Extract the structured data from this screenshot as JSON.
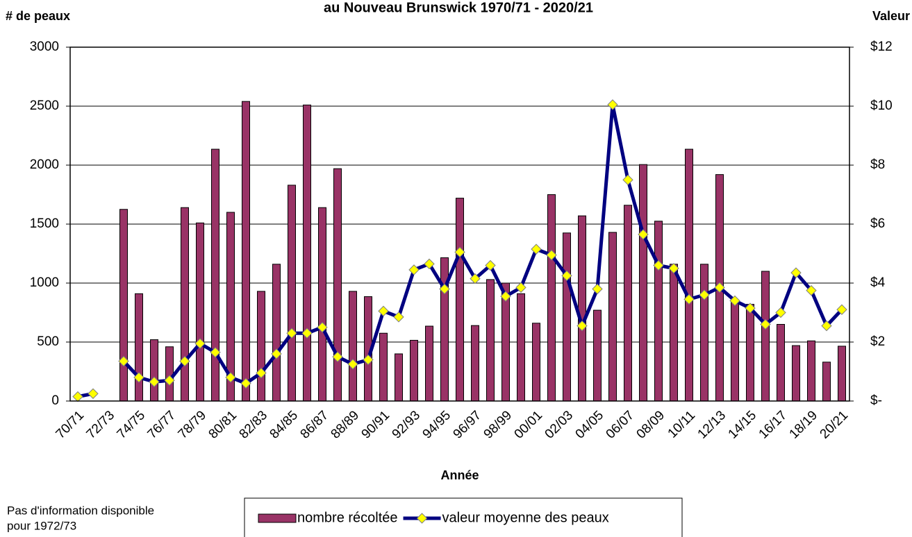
{
  "chart_data": {
    "type": "bar",
    "title": "au Nouveau Brunswick 1970/71 - 2020/21",
    "y_label": "# de peaux",
    "y2_label": "Valeur",
    "x_label": "Année",
    "annotation": [
      "Pas d'information disponible",
      "pour 1972/73"
    ],
    "categories": [
      "70/71",
      null,
      "72/73",
      null,
      "74/75",
      null,
      "76/77",
      null,
      "78/79",
      null,
      "80/81",
      null,
      "82/83",
      null,
      "84/85",
      null,
      "86/87",
      null,
      "88/89",
      null,
      "90/91",
      null,
      "92/93",
      null,
      "94/95",
      null,
      "96/97",
      null,
      "98/99",
      null,
      "00/01",
      null,
      "02/03",
      null,
      "04/05",
      null,
      "06/07",
      null,
      "08/09",
      null,
      "10/11",
      null,
      "12/13",
      null,
      "14/15",
      null,
      "16/17",
      null,
      "18/19",
      null,
      "20/21"
    ],
    "series": [
      {
        "name": "nombre récoltée",
        "type": "bar",
        "color": "#993366",
        "values": [
          null,
          null,
          null,
          1625,
          910,
          520,
          460,
          1640,
          1510,
          2135,
          1600,
          2540,
          930,
          1160,
          1830,
          2510,
          1640,
          1970,
          930,
          885,
          575,
          400,
          515,
          635,
          1215,
          1720,
          640,
          1030,
          1000,
          910,
          660,
          1750,
          1425,
          1570,
          770,
          1430,
          1660,
          2005,
          1525,
          1160,
          2135,
          1160,
          1920,
          850,
          820,
          1100,
          650,
          470,
          510,
          330,
          465
        ]
      },
      {
        "name": "valeur moyenne des peaux",
        "type": "line",
        "axis": "y2",
        "color": "#000080",
        "marker_color": "#ffff00",
        "values": [
          0.15,
          0.25,
          null,
          1.35,
          0.8,
          0.65,
          0.7,
          1.35,
          1.95,
          1.65,
          0.8,
          0.6,
          0.95,
          1.6,
          2.3,
          2.3,
          2.5,
          1.5,
          1.25,
          1.4,
          3.05,
          2.85,
          4.45,
          4.65,
          3.8,
          5.05,
          4.15,
          4.6,
          3.55,
          3.85,
          5.15,
          4.95,
          4.25,
          2.55,
          3.8,
          10.05,
          7.5,
          5.65,
          4.6,
          4.5,
          3.45,
          3.6,
          3.85,
          3.4,
          3.15,
          2.6,
          3.0,
          4.35,
          3.75,
          2.55,
          3.1
        ]
      }
    ],
    "ylim": [
      0,
      3000
    ],
    "yticks": [
      0,
      500,
      1000,
      1500,
      2000,
      2500,
      3000
    ],
    "y2lim": [
      0,
      12
    ],
    "y2ticks": [
      {
        "value": 0,
        "label": "$-"
      },
      {
        "value": 2,
        "label": "$2"
      },
      {
        "value": 4,
        "label": "$4"
      },
      {
        "value": 6,
        "label": "$6"
      },
      {
        "value": 8,
        "label": "$8"
      },
      {
        "value": 10,
        "label": "$10"
      },
      {
        "value": 12,
        "label": "$12"
      }
    ],
    "grid": true,
    "legend": "bottom"
  }
}
